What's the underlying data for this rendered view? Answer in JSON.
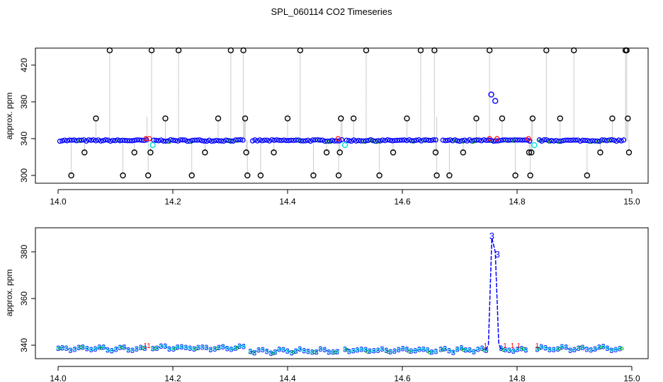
{
  "figure": {
    "title": "SPL_060114  CO2 Timeseries"
  },
  "colors": {
    "raw": "#000000",
    "flag_red": "#ff0000",
    "flag_green": "#00a000",
    "main": "#0000ff",
    "flag_cyan": "#00e0e0",
    "vert": "#999999"
  },
  "chart_data": [
    {
      "type": "scatter",
      "panel": "top",
      "xlabel": "",
      "ylabel": "approx. ppm",
      "xlim": [
        14.0,
        15.0
      ],
      "ylim": [
        300,
        440
      ],
      "xticks": [
        "14.0",
        "14.2",
        "14.4",
        "14.6",
        "14.8",
        "15.0"
      ],
      "yticks": [
        "300",
        "340",
        "380",
        "420"
      ],
      "baseline": 338,
      "gaps": [
        [
          14.155,
          14.165
        ],
        [
          14.325,
          14.335
        ],
        [
          14.495,
          14.5
        ],
        [
          14.66,
          14.667
        ],
        [
          14.825,
          14.835
        ]
      ],
      "outliers_x": [
        14.023,
        14.046,
        14.066,
        14.09,
        14.113,
        14.133,
        14.157,
        14.161,
        14.163,
        14.187,
        14.21,
        14.233,
        14.256,
        14.279,
        14.301,
        14.323,
        14.326,
        14.328,
        14.33,
        14.353,
        14.376,
        14.4,
        14.422,
        14.445,
        14.468,
        14.489,
        14.491,
        14.493,
        14.515,
        14.537,
        14.56,
        14.584,
        14.608,
        14.632,
        14.656,
        14.658,
        14.66,
        14.682,
        14.706,
        14.729,
        14.752,
        14.774,
        14.797,
        14.821,
        14.823,
        14.825,
        14.827,
        14.851,
        14.875,
        14.899,
        14.922,
        14.945,
        14.966,
        14.989,
        14.991,
        14.993,
        14.995
      ],
      "outliers_y": [
        300,
        325,
        362,
        436,
        300,
        325,
        300,
        325,
        436,
        362,
        436,
        300,
        325,
        362,
        436,
        436,
        362,
        325,
        300,
        300,
        325,
        362,
        436,
        300,
        325,
        300,
        325,
        362,
        362,
        436,
        300,
        325,
        362,
        436,
        436,
        325,
        300,
        300,
        325,
        362,
        436,
        362,
        300,
        325,
        300,
        325,
        362,
        436,
        362,
        436,
        300,
        325,
        362,
        436,
        436,
        362,
        325
      ],
      "spike_x": [
        14.755,
        14.762
      ],
      "spike_y": [
        388,
        381
      ],
      "cyan_x": [
        14.165,
        14.5,
        14.83
      ],
      "cyan_y": [
        333,
        333,
        333
      ]
    },
    {
      "type": "line",
      "panel": "bottom",
      "xlabel": "",
      "ylabel": "approx. ppm",
      "xlim": [
        14.0,
        15.0
      ],
      "ylim": [
        336,
        388
      ],
      "xticks": [
        "14.0",
        "14.2",
        "14.4",
        "14.6",
        "14.8",
        "15.0"
      ],
      "yticks": [
        "340",
        "360",
        "380"
      ],
      "segments": [
        [
          14.0,
          14.155
        ],
        [
          14.165,
          14.325
        ],
        [
          14.335,
          14.492
        ],
        [
          14.5,
          14.66
        ],
        [
          14.667,
          14.752
        ],
        [
          14.772,
          14.822
        ],
        [
          14.835,
          14.985
        ]
      ],
      "levels": [
        338.5,
        339.0,
        337.6,
        337.9,
        338.0,
        338.0,
        338.6
      ],
      "spike_x": [
        14.745,
        14.75,
        14.756,
        14.762,
        14.768,
        14.772
      ],
      "spike_y": [
        338,
        340,
        386,
        380,
        341,
        338
      ],
      "marker_label": "3"
    }
  ]
}
